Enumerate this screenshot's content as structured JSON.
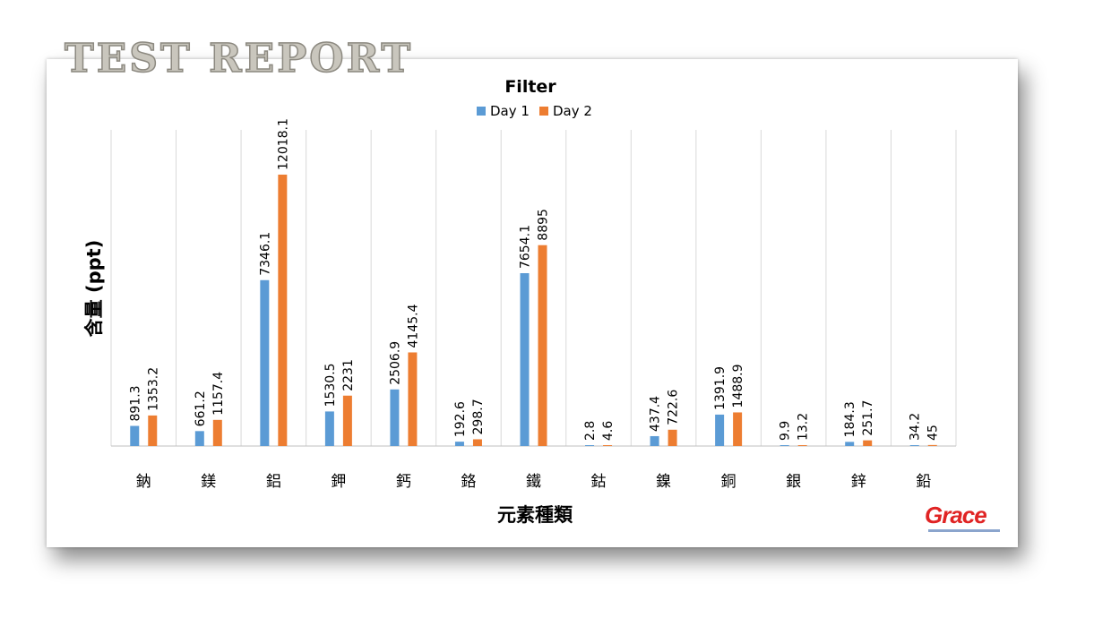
{
  "watermark": {
    "text": "TEST REPORT"
  },
  "logo": {
    "text": "Grace",
    "color": "#e02424"
  },
  "chart_data": {
    "type": "bar",
    "title": "Filter",
    "xlabel": "元素種類",
    "ylabel": "含量 (ppt)",
    "legend_position": "top",
    "grid": "vertical-category-dividers",
    "ylim": [
      0,
      14000
    ],
    "categories": [
      "鈉",
      "鎂",
      "鋁",
      "鉀",
      "鈣",
      "鉻",
      "鐵",
      "鈷",
      "鎳",
      "銅",
      "銀",
      "鋅",
      "鉛"
    ],
    "series": [
      {
        "name": "Day 1",
        "color": "#5b9bd5",
        "values": [
          891.3,
          661.2,
          7346.1,
          1530.5,
          2506.9,
          192.6,
          7654.1,
          2.8,
          437.4,
          1391.9,
          9.9,
          184.3,
          34.2
        ],
        "labels": [
          "891.3",
          "661.2",
          "7346.1",
          "1530.5",
          "2506.9",
          "192.6",
          "7654.1",
          "2.8",
          "437.4",
          "1391.9",
          "9.9",
          "184.3",
          "34.2"
        ]
      },
      {
        "name": "Day 2",
        "color": "#ed7d31",
        "values": [
          1353.2,
          1157.4,
          12018.1,
          2231,
          4145.4,
          298.7,
          8895,
          4.6,
          722.6,
          1488.9,
          13.2,
          251.7,
          45
        ],
        "labels": [
          "1353.2",
          "1157.4",
          "12018.1",
          "2231",
          "4145.4",
          "298.7",
          "8895",
          "4.6",
          "722.6",
          "1488.9",
          "13.2",
          "251.7",
          "45"
        ]
      }
    ]
  }
}
